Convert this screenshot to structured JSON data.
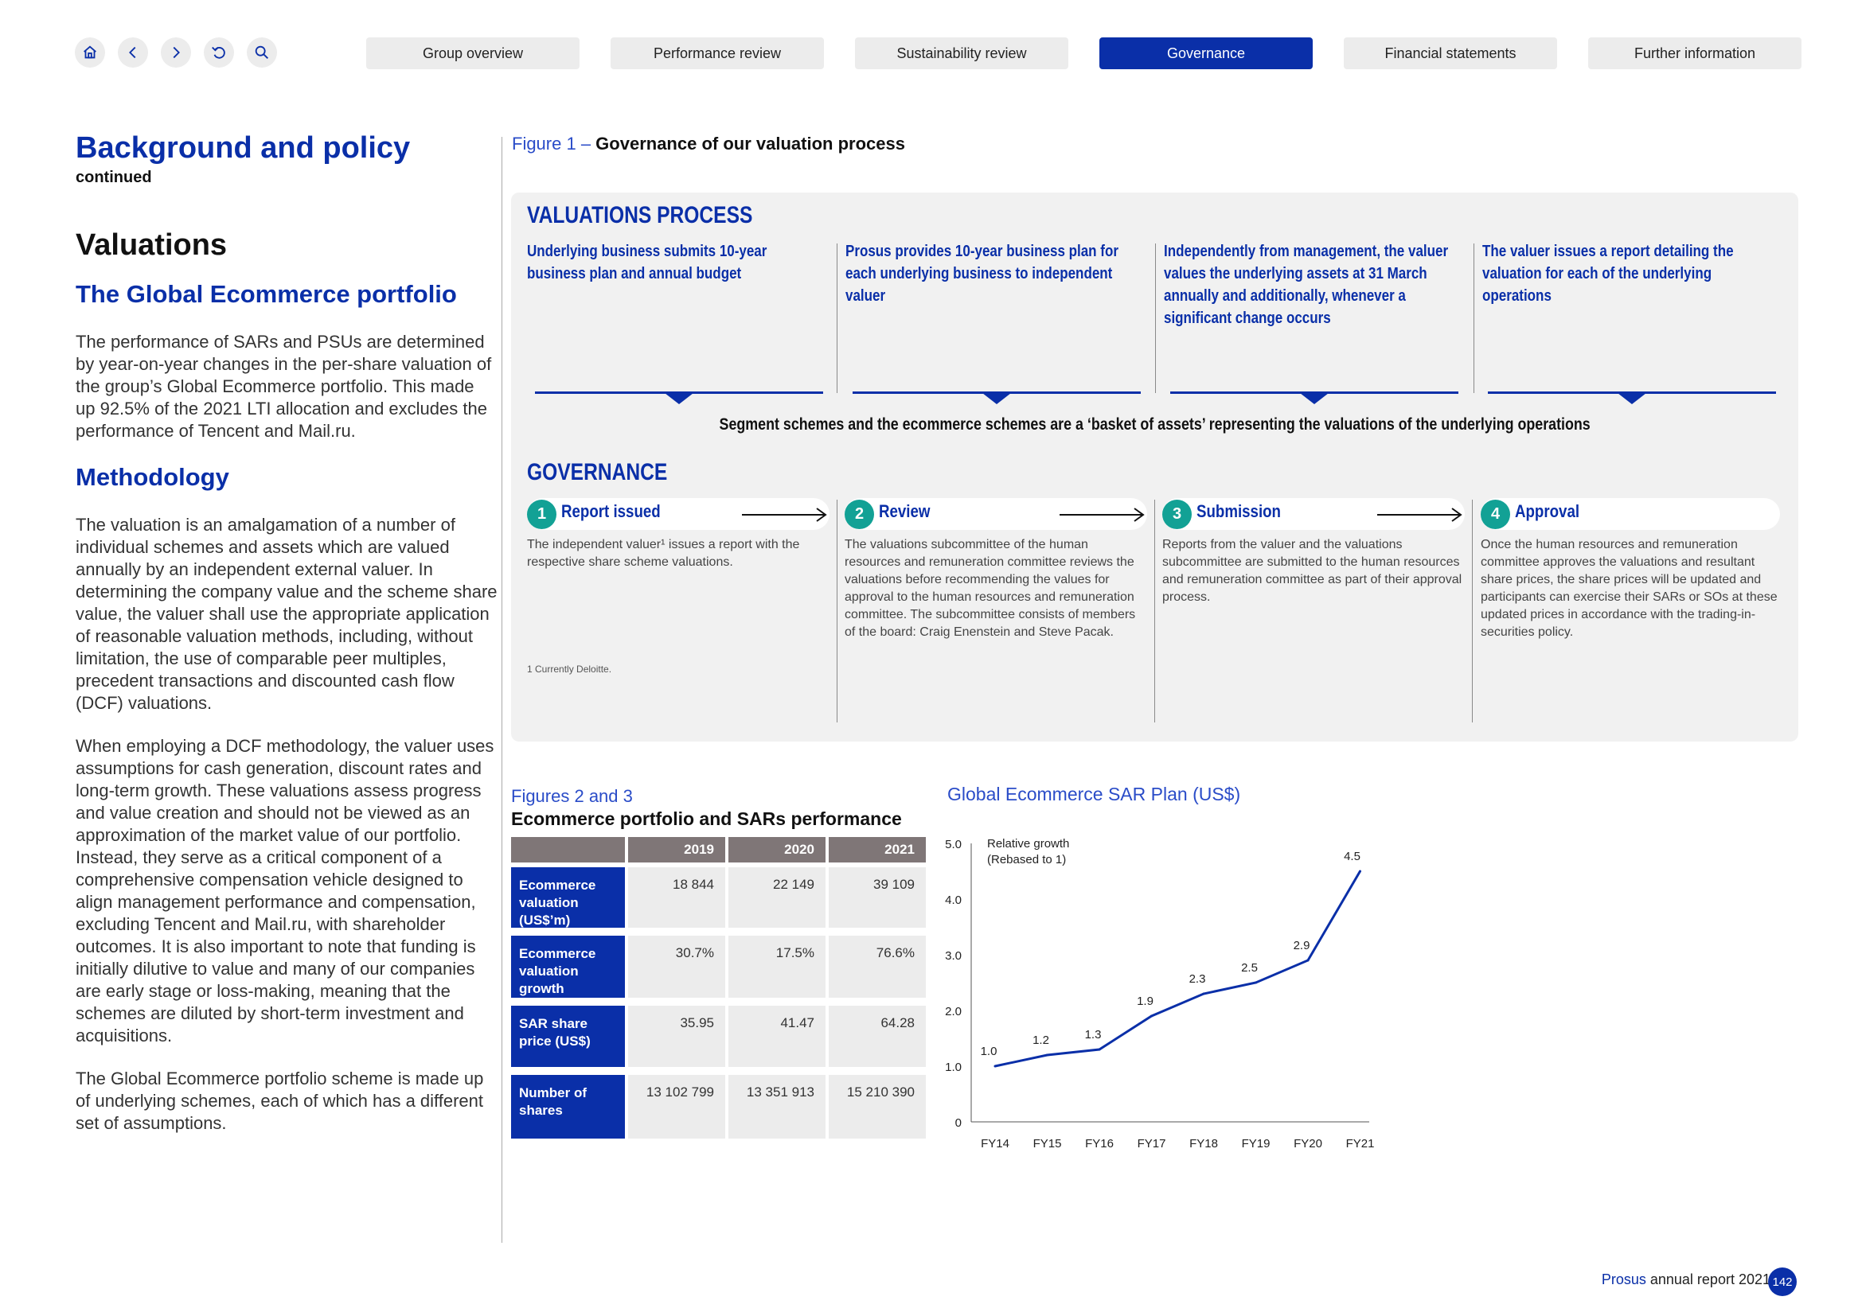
{
  "nav": {
    "icons": [
      "home-icon",
      "back-icon",
      "forward-icon",
      "undo-icon",
      "search-icon"
    ],
    "tabs": [
      "Group overview",
      "Performance review",
      "Sustainability review",
      "Governance",
      "Financial statements",
      "Further information"
    ],
    "active_tab": "Governance"
  },
  "left": {
    "title": "Background and policy",
    "continued": "continued",
    "section": "Valuations",
    "subsection1": "The Global Ecommerce portfolio",
    "para1": "The performance of SARs and PSUs are determined by year-on-year changes in the per-share valuation of the group’s Global Ecommerce portfolio. This made up 92.5% of the 2021 LTI allocation and excludes the performance of Tencent and Mail.ru.",
    "subsection2": "Methodology",
    "para2": "The valuation is an amalgamation of a number of individual schemes and assets which are valued annually by an independent external valuer. In determining the company value and the scheme share value, the valuer shall use the appropriate application of reasonable valuation methods, including, without limitation, the use of comparable peer multiples, precedent transactions and discounted cash flow (DCF) valuations.",
    "para3": "When employing a DCF methodology, the valuer uses assumptions for cash generation, discount rates and long-term growth. These valuations assess progress and value creation and should not be viewed as an approximation of the market value of our portfolio. Instead, they serve as a critical component of a comprehensive compensation vehicle designed to align management performance and compensation, excluding Tencent and Mail.ru, with shareholder outcomes. It is also important to note that funding is initially dilutive to value and many of our companies are early stage or loss-making, meaning that the schemes are diluted by short-term investment and acquisitions.",
    "para4": "The Global Ecommerce portfolio scheme is made up of underlying schemes, each of which has a different set of assumptions."
  },
  "figure1": {
    "label": "Figure 1 – ",
    "title": "Governance of our valuation process",
    "process_heading": "VALUATIONS PROCESS",
    "process_steps": [
      "Underlying business submits 10-year business plan and annual budget",
      "Prosus provides 10-year business plan for each underlying business to independent valuer",
      "Independently from management, the valuer values the underlying assets at 31 March annually and additionally, whenever a significant change occurs",
      "The valuer issues a report detailing the valuation for each of the underlying operations"
    ],
    "segment_text": "Segment schemes and the ecommerce schemes are a ‘basket of assets’ representing the valuations of the underlying operations",
    "governance_heading": "GOVERNANCE",
    "gov_steps": [
      {
        "num": "1",
        "label": "Report issued",
        "desc": "The independent valuer¹ issues a report with the respective share scheme valuations."
      },
      {
        "num": "2",
        "label": "Review",
        "desc": "The valuations subcommittee of the human resources and remuneration committee reviews the valuations before recommending the values for approval to the human resources and remuneration committee. The subcommittee consists of members of the board: Craig Enenstein and Steve Pacak."
      },
      {
        "num": "3",
        "label": "Submission",
        "desc": "Reports from the valuer and the valuations subcommittee are submitted to the human resources and remuneration committee as part of their approval process."
      },
      {
        "num": "4",
        "label": "Approval",
        "desc": "Once the human resources and remuneration committee approves the valuations and resultant share prices, the share prices will be updated and participants can exercise their SARs or SOs at these updated prices in accordance with the trading-in-securities policy."
      }
    ],
    "footnote": "1     Currently Deloitte."
  },
  "table": {
    "caption": "Figures 2 and 3",
    "title": "Ecommerce portfolio and SARs performance",
    "years": [
      "2019",
      "2020",
      "2021"
    ],
    "rows": [
      {
        "label": "Ecommerce valuation (US$’m)",
        "values": [
          "18 844",
          "22 149",
          "39 109"
        ]
      },
      {
        "label": "Ecommerce valuation growth",
        "values": [
          "30.7%",
          "17.5%",
          "76.6%"
        ]
      },
      {
        "label": "SAR share price (US$)",
        "values": [
          "35.95",
          "41.47",
          "64.28"
        ]
      },
      {
        "label": "Number of shares",
        "values": [
          "13 102 799",
          "13 351 913",
          "15 210 390"
        ]
      }
    ]
  },
  "chart_data": {
    "type": "line",
    "title": "Global Ecommerce SAR Plan (US$)",
    "annotation_line1": "Relative growth",
    "annotation_line2": "(Rebased to 1)",
    "categories": [
      "FY14",
      "FY15",
      "FY16",
      "FY17",
      "FY18",
      "FY19",
      "FY20",
      "FY21"
    ],
    "values": [
      1.0,
      1.2,
      1.3,
      1.9,
      2.3,
      2.5,
      2.9,
      4.5
    ],
    "data_labels": [
      "1.0",
      "1.2",
      "1.3",
      "1.9",
      "2.3",
      "2.5",
      "2.9",
      "4.5"
    ],
    "y_ticks": [
      "0",
      "1.0",
      "2.0",
      "3.0",
      "4.0",
      "5.0"
    ],
    "ylim": [
      0,
      5
    ],
    "grid": false,
    "line_color": "#0a2fa8"
  },
  "footer": {
    "brand": "Prosus",
    "text": " annual report 2021",
    "page": "142"
  },
  "colors": {
    "primary": "#0a2fa8",
    "step_badge": "#12a195",
    "table_header": "#7f7677"
  }
}
